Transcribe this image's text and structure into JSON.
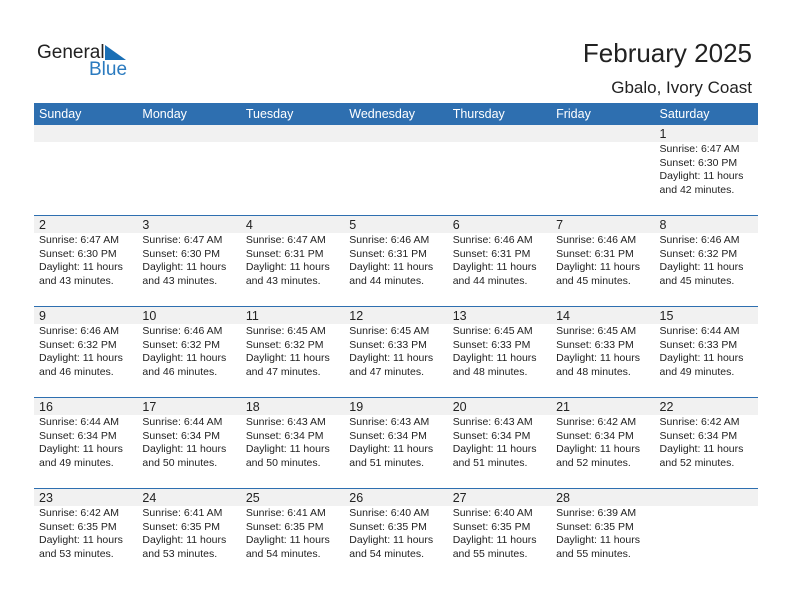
{
  "logo": {
    "word1": "General",
    "word2": "Blue"
  },
  "header": {
    "title": "February 2025",
    "location": "Gbalo, Ivory Coast"
  },
  "weekdays": [
    "Sunday",
    "Monday",
    "Tuesday",
    "Wednesday",
    "Thursday",
    "Friday",
    "Saturday"
  ],
  "colors": {
    "header": "#2e6fb0",
    "date_band": "#f1f1f1"
  },
  "weeks": [
    [
      null,
      null,
      null,
      null,
      null,
      null,
      {
        "day": "1",
        "sunrise": "Sunrise: 6:47 AM",
        "sunset": "Sunset: 6:30 PM",
        "daylight": "Daylight: 11 hours",
        "minutes": "and 42 minutes."
      }
    ],
    [
      {
        "day": "2",
        "sunrise": "Sunrise: 6:47 AM",
        "sunset": "Sunset: 6:30 PM",
        "daylight": "Daylight: 11 hours",
        "minutes": "and 43 minutes."
      },
      {
        "day": "3",
        "sunrise": "Sunrise: 6:47 AM",
        "sunset": "Sunset: 6:30 PM",
        "daylight": "Daylight: 11 hours",
        "minutes": "and 43 minutes."
      },
      {
        "day": "4",
        "sunrise": "Sunrise: 6:47 AM",
        "sunset": "Sunset: 6:31 PM",
        "daylight": "Daylight: 11 hours",
        "minutes": "and 43 minutes."
      },
      {
        "day": "5",
        "sunrise": "Sunrise: 6:46 AM",
        "sunset": "Sunset: 6:31 PM",
        "daylight": "Daylight: 11 hours",
        "minutes": "and 44 minutes."
      },
      {
        "day": "6",
        "sunrise": "Sunrise: 6:46 AM",
        "sunset": "Sunset: 6:31 PM",
        "daylight": "Daylight: 11 hours",
        "minutes": "and 44 minutes."
      },
      {
        "day": "7",
        "sunrise": "Sunrise: 6:46 AM",
        "sunset": "Sunset: 6:31 PM",
        "daylight": "Daylight: 11 hours",
        "minutes": "and 45 minutes."
      },
      {
        "day": "8",
        "sunrise": "Sunrise: 6:46 AM",
        "sunset": "Sunset: 6:32 PM",
        "daylight": "Daylight: 11 hours",
        "minutes": "and 45 minutes."
      }
    ],
    [
      {
        "day": "9",
        "sunrise": "Sunrise: 6:46 AM",
        "sunset": "Sunset: 6:32 PM",
        "daylight": "Daylight: 11 hours",
        "minutes": "and 46 minutes."
      },
      {
        "day": "10",
        "sunrise": "Sunrise: 6:46 AM",
        "sunset": "Sunset: 6:32 PM",
        "daylight": "Daylight: 11 hours",
        "minutes": "and 46 minutes."
      },
      {
        "day": "11",
        "sunrise": "Sunrise: 6:45 AM",
        "sunset": "Sunset: 6:32 PM",
        "daylight": "Daylight: 11 hours",
        "minutes": "and 47 minutes."
      },
      {
        "day": "12",
        "sunrise": "Sunrise: 6:45 AM",
        "sunset": "Sunset: 6:33 PM",
        "daylight": "Daylight: 11 hours",
        "minutes": "and 47 minutes."
      },
      {
        "day": "13",
        "sunrise": "Sunrise: 6:45 AM",
        "sunset": "Sunset: 6:33 PM",
        "daylight": "Daylight: 11 hours",
        "minutes": "and 48 minutes."
      },
      {
        "day": "14",
        "sunrise": "Sunrise: 6:45 AM",
        "sunset": "Sunset: 6:33 PM",
        "daylight": "Daylight: 11 hours",
        "minutes": "and 48 minutes."
      },
      {
        "day": "15",
        "sunrise": "Sunrise: 6:44 AM",
        "sunset": "Sunset: 6:33 PM",
        "daylight": "Daylight: 11 hours",
        "minutes": "and 49 minutes."
      }
    ],
    [
      {
        "day": "16",
        "sunrise": "Sunrise: 6:44 AM",
        "sunset": "Sunset: 6:34 PM",
        "daylight": "Daylight: 11 hours",
        "minutes": "and 49 minutes."
      },
      {
        "day": "17",
        "sunrise": "Sunrise: 6:44 AM",
        "sunset": "Sunset: 6:34 PM",
        "daylight": "Daylight: 11 hours",
        "minutes": "and 50 minutes."
      },
      {
        "day": "18",
        "sunrise": "Sunrise: 6:43 AM",
        "sunset": "Sunset: 6:34 PM",
        "daylight": "Daylight: 11 hours",
        "minutes": "and 50 minutes."
      },
      {
        "day": "19",
        "sunrise": "Sunrise: 6:43 AM",
        "sunset": "Sunset: 6:34 PM",
        "daylight": "Daylight: 11 hours",
        "minutes": "and 51 minutes."
      },
      {
        "day": "20",
        "sunrise": "Sunrise: 6:43 AM",
        "sunset": "Sunset: 6:34 PM",
        "daylight": "Daylight: 11 hours",
        "minutes": "and 51 minutes."
      },
      {
        "day": "21",
        "sunrise": "Sunrise: 6:42 AM",
        "sunset": "Sunset: 6:34 PM",
        "daylight": "Daylight: 11 hours",
        "minutes": "and 52 minutes."
      },
      {
        "day": "22",
        "sunrise": "Sunrise: 6:42 AM",
        "sunset": "Sunset: 6:34 PM",
        "daylight": "Daylight: 11 hours",
        "minutes": "and 52 minutes."
      }
    ],
    [
      {
        "day": "23",
        "sunrise": "Sunrise: 6:42 AM",
        "sunset": "Sunset: 6:35 PM",
        "daylight": "Daylight: 11 hours",
        "minutes": "and 53 minutes."
      },
      {
        "day": "24",
        "sunrise": "Sunrise: 6:41 AM",
        "sunset": "Sunset: 6:35 PM",
        "daylight": "Daylight: 11 hours",
        "minutes": "and 53 minutes."
      },
      {
        "day": "25",
        "sunrise": "Sunrise: 6:41 AM",
        "sunset": "Sunset: 6:35 PM",
        "daylight": "Daylight: 11 hours",
        "minutes": "and 54 minutes."
      },
      {
        "day": "26",
        "sunrise": "Sunrise: 6:40 AM",
        "sunset": "Sunset: 6:35 PM",
        "daylight": "Daylight: 11 hours",
        "minutes": "and 54 minutes."
      },
      {
        "day": "27",
        "sunrise": "Sunrise: 6:40 AM",
        "sunset": "Sunset: 6:35 PM",
        "daylight": "Daylight: 11 hours",
        "minutes": "and 55 minutes."
      },
      {
        "day": "28",
        "sunrise": "Sunrise: 6:39 AM",
        "sunset": "Sunset: 6:35 PM",
        "daylight": "Daylight: 11 hours",
        "minutes": "and 55 minutes."
      },
      null
    ]
  ]
}
